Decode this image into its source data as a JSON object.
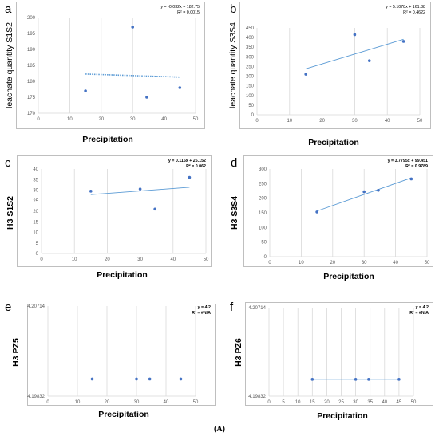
{
  "caption": "(A)",
  "colors": {
    "point": "#4472c4",
    "trend": "#5b9bd5",
    "grid": "#d9d9d9",
    "axis": "#595959"
  },
  "chart_data": [
    {
      "id": "a",
      "letter": "a",
      "type": "scatter",
      "xlabel": "Precipitation",
      "ylabel": "leachate quantity S1S2",
      "equation": "y = -0.032x + 182.75",
      "r2": "R² = 0.0015",
      "xlim": [
        0,
        50
      ],
      "ylim": [
        170,
        200
      ],
      "xticks": [
        0,
        10,
        20,
        30,
        40,
        50
      ],
      "yticks": [
        170,
        175,
        180,
        185,
        190,
        195,
        200
      ],
      "x": [
        15,
        30,
        34.5,
        45
      ],
      "y": [
        177,
        197,
        175,
        178
      ],
      "trendline": {
        "x": [
          15,
          45
        ],
        "y": [
          182.27,
          181.31
        ],
        "style": "dotted"
      },
      "ylabel_bold": false,
      "eq_bold": false,
      "grid": "vertical"
    },
    {
      "id": "b",
      "letter": "b",
      "type": "scatter",
      "xlabel": "Precipitation",
      "ylabel": "leachate quantity S3S4",
      "equation": "y = 5.1078x + 161.38",
      "r2": "R² = 0.4622",
      "xlim": [
        0,
        50
      ],
      "ylim": [
        0,
        450
      ],
      "xticks": [
        0,
        10,
        20,
        30,
        40,
        50
      ],
      "yticks": [
        0,
        50,
        100,
        150,
        200,
        250,
        300,
        350,
        400,
        450
      ],
      "x": [
        15,
        30,
        34.5,
        45
      ],
      "y": [
        210,
        415,
        280,
        380
      ],
      "trendline": {
        "x": [
          15,
          45
        ],
        "y": [
          238,
          391
        ],
        "style": "solid"
      },
      "ylabel_bold": false,
      "eq_bold": false,
      "grid": "vertical"
    },
    {
      "id": "c",
      "letter": "c",
      "type": "scatter",
      "xlabel": "Precipitation",
      "ylabel": "H3 S1S2",
      "equation": "y = 0.115x + 26.152",
      "r2": "R² = 0.062",
      "xlim": [
        0,
        50
      ],
      "ylim": [
        0,
        40
      ],
      "xticks": [
        0,
        10,
        20,
        30,
        40,
        50
      ],
      "yticks": [
        0,
        5,
        10,
        15,
        20,
        25,
        30,
        35,
        40
      ],
      "x": [
        15,
        30,
        34.5,
        45
      ],
      "y": [
        29.5,
        30.5,
        21,
        36
      ],
      "trendline": {
        "x": [
          15,
          45
        ],
        "y": [
          27.88,
          31.33
        ],
        "style": "solid"
      },
      "ylabel_bold": true,
      "eq_bold": true,
      "grid": "vertical"
    },
    {
      "id": "d",
      "letter": "d",
      "type": "scatter",
      "xlabel": "Precipitation",
      "ylabel": "H3 S3S4",
      "equation": "y = 3.7795x + 99.451",
      "r2": "R² = 0.9789",
      "xlim": [
        0,
        50
      ],
      "ylim": [
        0,
        300
      ],
      "xticks": [
        0,
        10,
        20,
        30,
        40,
        50
      ],
      "yticks": [
        0,
        50,
        100,
        150,
        200,
        250,
        300
      ],
      "x": [
        15,
        30,
        34.5,
        45
      ],
      "y": [
        153,
        222,
        227,
        266
      ],
      "trendline": {
        "x": [
          15,
          45
        ],
        "y": [
          156.14,
          269.53
        ],
        "style": "solid"
      },
      "ylabel_bold": true,
      "eq_bold": true,
      "grid": "vertical"
    },
    {
      "id": "e",
      "letter": "e",
      "type": "scatter",
      "xlabel": "Precipitation",
      "ylabel": "H3 PZ5",
      "equation": "y = 4.2",
      "r2": "R² = #N/A",
      "xlim": [
        0,
        50
      ],
      "ylim": [
        4.19832,
        4.20714
      ],
      "xticks": [
        0,
        10,
        20,
        30,
        40,
        50
      ],
      "yticks": [
        4.19832,
        4.20714
      ],
      "x": [
        15,
        30,
        34.5,
        45
      ],
      "y": [
        4.2,
        4.2,
        4.2,
        4.2
      ],
      "trendline": {
        "x": [
          15,
          45
        ],
        "y": [
          4.2,
          4.2
        ],
        "style": "solid"
      },
      "ylabel_bold": true,
      "eq_bold": true,
      "grid": "vertical"
    },
    {
      "id": "f",
      "letter": "f",
      "type": "scatter",
      "xlabel": "Precipitation",
      "ylabel": "H3 PZ6",
      "equation": "y = 4.2",
      "r2": "R² = #N/A",
      "xlim": [
        0,
        50
      ],
      "ylim": [
        4.19832,
        4.20714
      ],
      "xticks": [
        0,
        5,
        10,
        15,
        20,
        25,
        30,
        35,
        40,
        45,
        50
      ],
      "yticks": [
        4.19832,
        4.20714
      ],
      "x": [
        15,
        30,
        34.5,
        45
      ],
      "y": [
        4.2,
        4.2,
        4.2,
        4.2
      ],
      "trendline": {
        "x": [
          15,
          45
        ],
        "y": [
          4.2,
          4.2
        ],
        "style": "solid"
      },
      "ylabel_bold": true,
      "eq_bold": true,
      "grid": "vertical"
    }
  ]
}
